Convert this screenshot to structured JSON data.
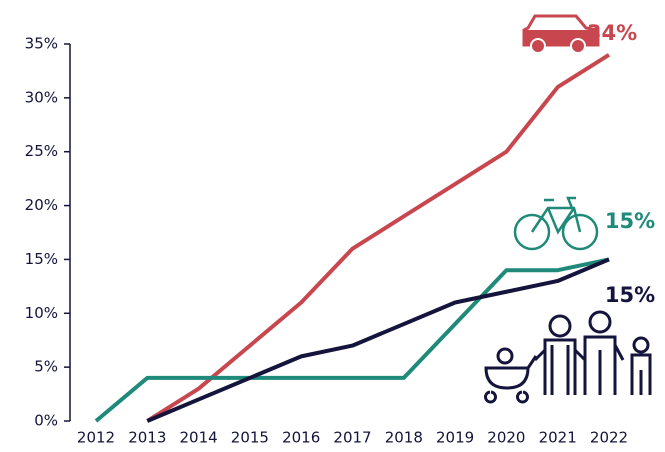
{
  "chart_data": {
    "type": "line",
    "categories": [
      "2012",
      "2013",
      "2014",
      "2015",
      "2016",
      "2017",
      "2018",
      "2019",
      "2020",
      "2021",
      "2022"
    ],
    "series": [
      {
        "color": "#c8474f",
        "values": [
          null,
          0,
          3,
          7,
          11,
          16,
          19,
          22,
          25,
          31,
          34
        ],
        "value_labels": [
          null,
          null,
          null,
          null,
          null,
          null,
          null,
          null,
          null,
          null,
          "34%"
        ]
      },
      {
        "color": "#1f8a7a",
        "values": [
          0,
          4,
          4,
          4,
          4,
          4,
          4,
          9,
          14,
          14,
          15
        ],
        "value_labels": [
          null,
          null,
          null,
          null,
          null,
          null,
          null,
          null,
          null,
          null,
          "15%"
        ]
      },
      {
        "color": "#14143c",
        "values": [
          null,
          0,
          2,
          4,
          6,
          7,
          9,
          11,
          12,
          13,
          15
        ],
        "value_labels": [
          null,
          null,
          null,
          null,
          null,
          null,
          null,
          null,
          null,
          null,
          "15%"
        ]
      }
    ],
    "ylim": [
      0,
      35
    ],
    "yticks": [
      {
        "value": 0,
        "label": "0%"
      },
      {
        "value": 5,
        "label": "5%"
      },
      {
        "value": 10,
        "label": "10%"
      },
      {
        "value": 15,
        "label": "15%"
      },
      {
        "value": 20,
        "label": "20%"
      },
      {
        "value": 25,
        "label": "25%"
      },
      {
        "value": 30,
        "label": "30%"
      },
      {
        "value": 35,
        "label": "35%"
      }
    ]
  }
}
